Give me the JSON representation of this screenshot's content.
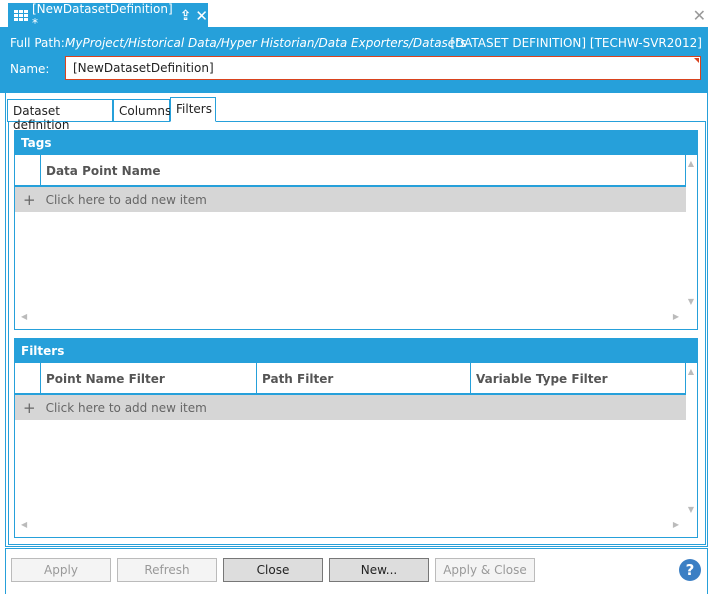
{
  "document_tab": {
    "title": "[NewDatasetDefinition] *",
    "icon": "grid-icon"
  },
  "header": {
    "full_path_label": "Full Path:",
    "full_path": "MyProject/Historical Data/Hyper Historian/Data Exporters/Datasets",
    "type_info": "[DATASET DEFINITION] [TECHW-SVR2012]",
    "name_label": "Name:",
    "name_value": "[NewDatasetDefinition]"
  },
  "tabs": [
    {
      "label": "Dataset definition"
    },
    {
      "label": "Columns"
    },
    {
      "label": "Filters",
      "active": true
    }
  ],
  "tags": {
    "title": "Tags",
    "columns": [
      "Data Point Name"
    ],
    "add_row": "Click here to add new item"
  },
  "filters": {
    "title": "Filters",
    "columns": [
      "Point Name Filter",
      "Path Filter",
      "Variable Type Filter"
    ],
    "add_row": "Click here to add new item"
  },
  "buttons": {
    "apply": "Apply",
    "refresh": "Refresh",
    "close": "Close",
    "new": "New...",
    "apply_close": "Apply & Close"
  },
  "colors": {
    "accent": "#26a0da",
    "error_border": "#d9431e"
  }
}
